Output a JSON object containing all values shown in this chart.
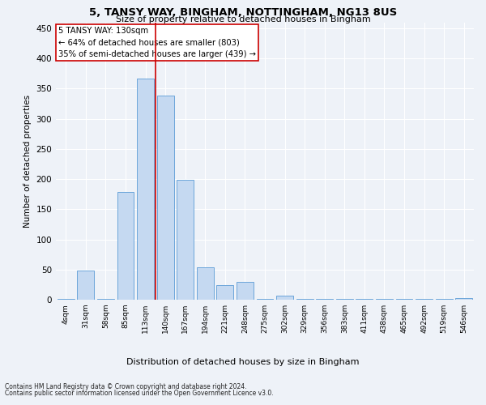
{
  "title": "5, TANSY WAY, BINGHAM, NOTTINGHAM, NG13 8US",
  "subtitle": "Size of property relative to detached houses in Bingham",
  "xlabel": "Distribution of detached houses by size in Bingham",
  "ylabel": "Number of detached properties",
  "bar_labels": [
    "4sqm",
    "31sqm",
    "58sqm",
    "85sqm",
    "113sqm",
    "140sqm",
    "167sqm",
    "194sqm",
    "221sqm",
    "248sqm",
    "275sqm",
    "302sqm",
    "329sqm",
    "356sqm",
    "383sqm",
    "411sqm",
    "438sqm",
    "465sqm",
    "492sqm",
    "519sqm",
    "546sqm"
  ],
  "bar_values": [
    1,
    49,
    1,
    179,
    366,
    338,
    199,
    54,
    24,
    30,
    1,
    7,
    1,
    1,
    1,
    1,
    1,
    1,
    1,
    1,
    3
  ],
  "bar_color": "#c5d9f1",
  "bar_edge_color": "#5b9bd5",
  "property_line_index": 4.5,
  "property_label": "5 TANSY WAY: 130sqm",
  "annotation_line1": "← 64% of detached houses are smaller (803)",
  "annotation_line2": "35% of semi-detached houses are larger (439) →",
  "annotation_box_color": "#ffffff",
  "annotation_box_edge": "#cc0000",
  "vline_color": "#cc0000",
  "ylim": [
    0,
    460
  ],
  "yticks": [
    0,
    50,
    100,
    150,
    200,
    250,
    300,
    350,
    400,
    450
  ],
  "footnote1": "Contains HM Land Registry data © Crown copyright and database right 2024.",
  "footnote2": "Contains public sector information licensed under the Open Government Licence v3.0.",
  "bg_color": "#eef2f8",
  "grid_color": "#ffffff"
}
